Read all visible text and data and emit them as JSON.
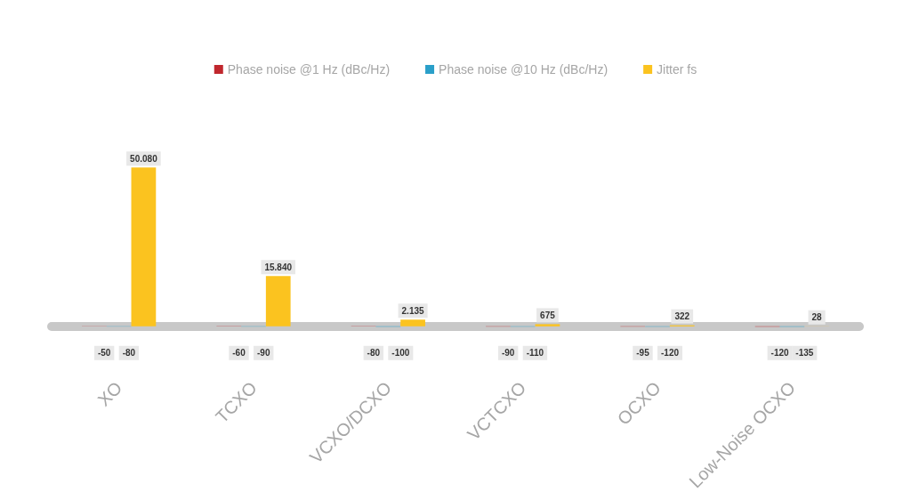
{
  "chart_data": {
    "type": "bar",
    "categories": [
      "XO",
      "TCXO",
      "VCXO/DCXO",
      "VCTCXO",
      "OCXO",
      "Low-Noise OCXO"
    ],
    "series": [
      {
        "name": "Phase noise @1 Hz (dBc/Hz)",
        "color": "#c0272d",
        "values": [
          -50,
          -60,
          -80,
          -90,
          -95,
          -120
        ]
      },
      {
        "name": "Phase noise @10 Hz (dBc/Hz)",
        "color": "#2a9fc9",
        "values": [
          -80,
          -90,
          -100,
          -110,
          -120,
          -135
        ]
      },
      {
        "name": "Jitter fs",
        "color": "#fbc31f",
        "values": [
          50080,
          15840,
          2135,
          675,
          322,
          28
        ],
        "value_labels": [
          "50.080",
          "15.840",
          "2.135",
          "675",
          "322",
          "28"
        ]
      }
    ],
    "data_labels": true,
    "legend": "top",
    "tick_labels": "x"
  }
}
